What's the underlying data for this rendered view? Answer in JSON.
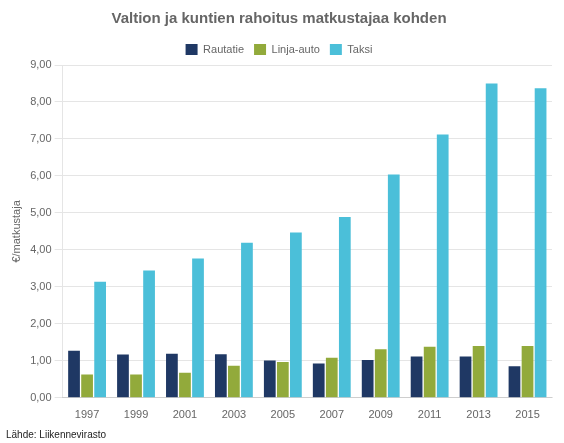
{
  "chart_data": {
    "type": "bar",
    "title": "Valtion ja kuntien rahoitus matkustajaa kohden",
    "ylabel": "€/matkustaja",
    "annotations": [
      "Lähde: Liikennevirasto"
    ],
    "categories": [
      "1997",
      "1999",
      "2001",
      "2003",
      "2005",
      "2007",
      "2009",
      "2011",
      "2013",
      "2015"
    ],
    "series": [
      {
        "name": "Rautatie",
        "color": "#1F3864",
        "values": [
          1.27,
          1.17,
          1.19,
          1.18,
          1.01,
          0.93,
          1.02,
          1.12,
          1.12,
          0.85
        ]
      },
      {
        "name": "Linja-auto",
        "color": "#92AA3B",
        "values": [
          0.63,
          0.63,
          0.68,
          0.87,
          0.97,
          1.08,
          1.31,
          1.38,
          1.4,
          1.4
        ]
      },
      {
        "name": "Taksi",
        "color": "#4BBFD9",
        "values": [
          3.14,
          3.44,
          3.77,
          4.19,
          4.47,
          4.89,
          6.04,
          7.12,
          8.5,
          8.37
        ]
      }
    ],
    "ylim": [
      0,
      9.0
    ],
    "yticks": [
      {
        "value": 0.0,
        "label": "0,00"
      },
      {
        "value": 1.0,
        "label": "1,00"
      },
      {
        "value": 2.0,
        "label": "2,00"
      },
      {
        "value": 3.0,
        "label": "3,00"
      },
      {
        "value": 4.0,
        "label": "4,00"
      },
      {
        "value": 5.0,
        "label": "5,00"
      },
      {
        "value": 6.0,
        "label": "6,00"
      },
      {
        "value": 7.0,
        "label": "7,00"
      },
      {
        "value": 8.0,
        "label": "8,00"
      },
      {
        "value": 9.0,
        "label": "9,00"
      }
    ],
    "grid": "y",
    "legend": "top"
  }
}
